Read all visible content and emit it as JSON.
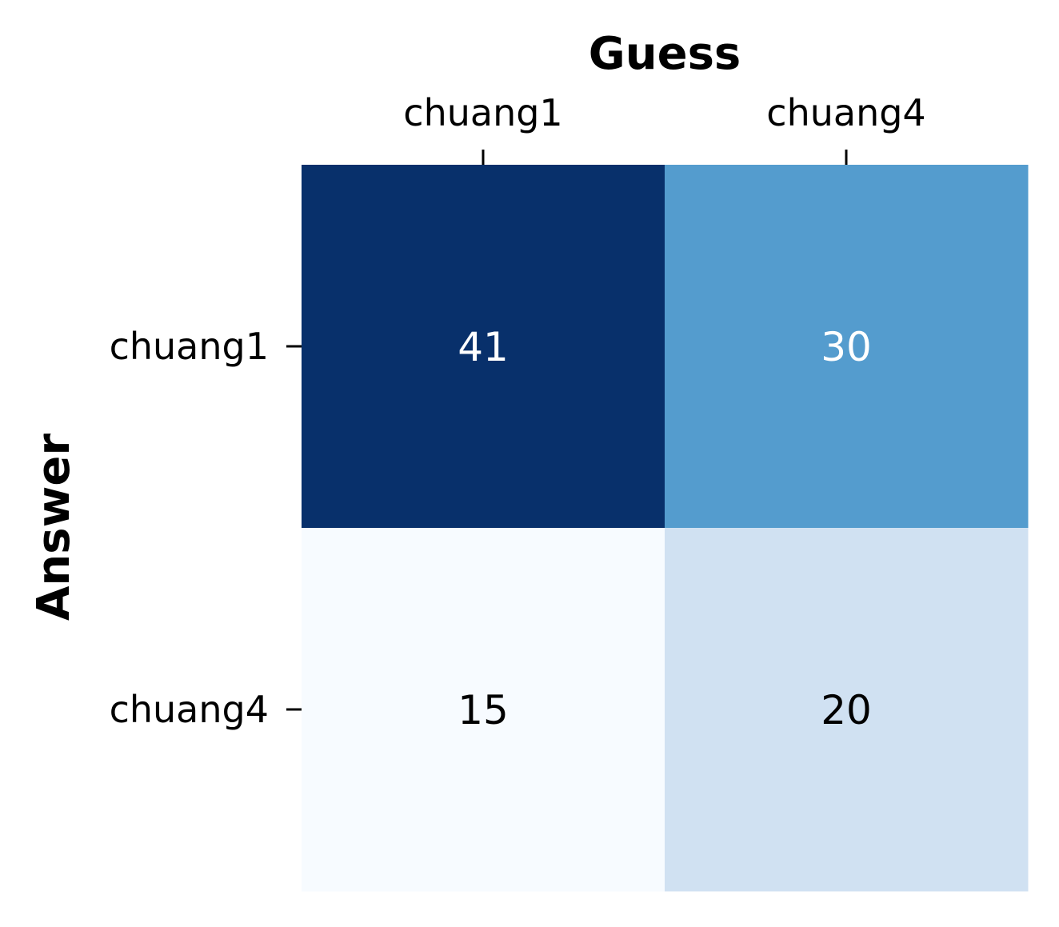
{
  "chart_data": {
    "type": "heatmap",
    "xlabel": "Guess",
    "ylabel": "Answer",
    "x_categories": [
      "chuang1",
      "chuang4"
    ],
    "y_categories": [
      "chuang1",
      "chuang4"
    ],
    "values": [
      [
        41,
        30
      ],
      [
        15,
        20
      ]
    ],
    "colormap": "Blues",
    "cell_colors": [
      [
        "#08306b",
        "#549cce"
      ],
      [
        "#f7fbff",
        "#d0e1f2"
      ]
    ],
    "label_colors": [
      [
        "#ffffff",
        "#ffffff"
      ],
      [
        "#000000",
        "#000000"
      ]
    ],
    "x_axis_position": "top",
    "colorbar": false,
    "grid": false
  }
}
